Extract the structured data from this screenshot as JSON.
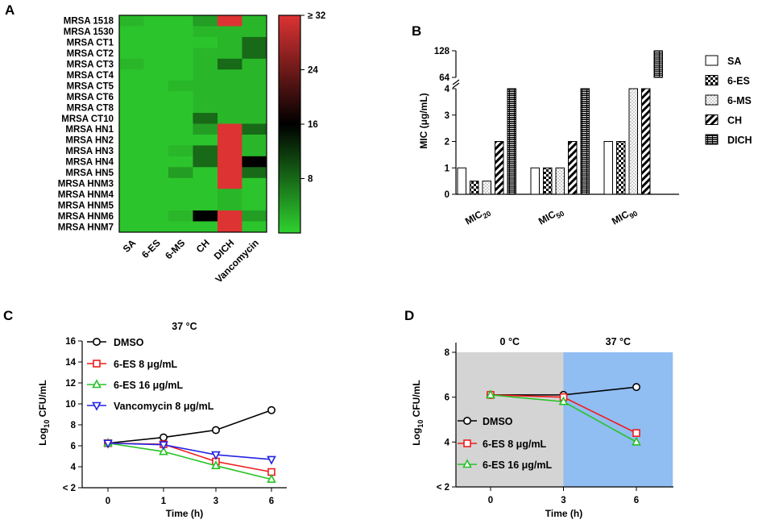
{
  "chart_data": [
    {
      "panel": "A",
      "type": "heatmap",
      "rows": [
        "MRSA 1518",
        "MRSA 1530",
        "MRSA CT1",
        "MRSA CT2",
        "MRSA CT3",
        "MRSA CT4",
        "MRSA CT5",
        "MRSA CT6",
        "MRSA CT8",
        "MRSA CT10",
        "MRSA HN1",
        "MRSA HN2",
        "MRSA HN3",
        "MRSA HN4",
        "MRSA HN5",
        "MRSA HNM3",
        "MRSA HNM4",
        "MRSA HNM5",
        "MRSA HNM6",
        "MRSA HNM7"
      ],
      "columns": [
        "SA",
        "6-ES",
        "6-MS",
        "CH",
        "DICH",
        "Vancomycin"
      ],
      "values": [
        [
          2,
          1,
          1,
          4,
          32,
          2
        ],
        [
          1,
          1,
          1,
          2,
          2,
          2
        ],
        [
          1,
          1,
          1,
          1,
          2,
          8
        ],
        [
          1,
          1,
          1,
          2,
          2,
          8
        ],
        [
          2,
          1,
          1,
          2,
          8,
          2
        ],
        [
          1,
          1,
          1,
          2,
          2,
          2
        ],
        [
          1,
          1,
          2,
          2,
          2,
          2
        ],
        [
          1,
          1,
          1,
          2,
          2,
          2
        ],
        [
          1,
          1,
          1,
          2,
          2,
          2
        ],
        [
          1,
          1,
          1,
          8,
          2,
          2
        ],
        [
          1,
          1,
          1,
          4,
          32,
          8
        ],
        [
          1,
          1,
          1,
          1,
          32,
          2
        ],
        [
          1,
          1,
          2,
          8,
          32,
          2
        ],
        [
          1,
          1,
          1,
          8,
          32,
          16
        ],
        [
          1,
          1,
          4,
          1,
          32,
          8
        ],
        [
          1,
          1,
          1,
          1,
          32,
          1
        ],
        [
          1,
          1,
          1,
          1,
          2,
          1
        ],
        [
          1,
          1,
          1,
          1,
          2,
          1
        ],
        [
          1,
          1,
          2,
          16,
          32,
          4
        ],
        [
          1,
          1,
          1,
          1,
          32,
          1
        ]
      ],
      "colorbar": {
        "ticks": [
          "≥ 32",
          "24",
          "16",
          "8"
        ],
        "tick_values": [
          32,
          24,
          16,
          8
        ],
        "range": [
          0,
          32
        ],
        "colors": {
          "low": "#2fd12f",
          "mid": "#000000",
          "high": "#dd3333"
        }
      }
    },
    {
      "panel": "B",
      "type": "bar",
      "ylabel": "MIC  (μg/mL)",
      "categories": [
        "MIC20",
        "MIC50",
        "MIC90"
      ],
      "category_labels": [
        {
          "base": "MIC",
          "sub": "20"
        },
        {
          "base": "MIC",
          "sub": "50"
        },
        {
          "base": "MIC",
          "sub": "90"
        }
      ],
      "series": [
        {
          "name": "SA",
          "values": [
            1,
            1,
            2
          ],
          "pattern": "white"
        },
        {
          "name": "6-ES",
          "values": [
            0.5,
            1,
            2
          ],
          "pattern": "checker"
        },
        {
          "name": "6-MS",
          "values": [
            0.5,
            1,
            4
          ],
          "pattern": "dots"
        },
        {
          "name": "CH",
          "values": [
            2,
            2,
            4
          ],
          "pattern": "diagonal"
        },
        {
          "name": "DICH",
          "values": [
            4,
            4,
            128
          ],
          "pattern": "brick"
        }
      ],
      "y_ticks_lower": [
        "0",
        "1",
        "2",
        "3",
        "4"
      ],
      "y_ticks_upper": [
        "64",
        "128"
      ],
      "ylim_lower": [
        0,
        4
      ],
      "ylim_upper": [
        64,
        128
      ]
    },
    {
      "panel": "C",
      "type": "line",
      "title": "37 °C",
      "xlabel": "Time (h)",
      "ylabel": {
        "base": "Log",
        "sub": "10",
        "rest": " CFU/mL"
      },
      "x_ticks": [
        "0",
        "1",
        "3",
        "6"
      ],
      "y_ticks": [
        "< 2",
        "4",
        "6",
        "8",
        "10",
        "12",
        "14",
        "16"
      ],
      "ylim": [
        2,
        16
      ],
      "series": [
        {
          "name": "DMSO",
          "x": [
            0,
            1,
            3,
            6
          ],
          "y": [
            6.25,
            6.8,
            7.5,
            9.4
          ],
          "color": "#000000",
          "marker": "circle"
        },
        {
          "name": "6-ES 8 μg/mL",
          "x": [
            0,
            1,
            3,
            6
          ],
          "y": [
            6.25,
            6.15,
            4.5,
            3.5
          ],
          "color": "#ee1c1c",
          "marker": "square"
        },
        {
          "name": "6-ES 16 μg/mL",
          "x": [
            0,
            1,
            3,
            6
          ],
          "y": [
            6.25,
            5.45,
            4.1,
            2.8
          ],
          "color": "#27c227",
          "marker": "triangle-up"
        },
        {
          "name": "Vancomycin 8 μg/mL",
          "x": [
            0,
            1,
            3,
            6
          ],
          "y": [
            6.25,
            6.1,
            5.15,
            4.7
          ],
          "color": "#2424e6",
          "marker": "triangle-down"
        }
      ]
    },
    {
      "panel": "D",
      "type": "line",
      "xlabel": "Time (h)",
      "ylabel": {
        "base": "Log",
        "sub": "10",
        "rest": " CFU/mL"
      },
      "x_ticks": [
        "0",
        "3",
        "6"
      ],
      "y_ticks": [
        "< 2",
        "4",
        "6",
        "8"
      ],
      "ylim": [
        2,
        8
      ],
      "regions": [
        {
          "label": "0 °C",
          "x_from": -1.6,
          "x_to": 3,
          "color": "#d4d4d4"
        },
        {
          "label": "37 °C",
          "x_from": 3,
          "x_to": 7.5,
          "color": "#90bdf2"
        }
      ],
      "series": [
        {
          "name": "DMSO",
          "x": [
            0,
            3,
            6
          ],
          "y": [
            6.1,
            6.1,
            6.45
          ],
          "color": "#000000",
          "marker": "circle"
        },
        {
          "name": "6-ES 8 μg/mL",
          "x": [
            0,
            3,
            6
          ],
          "y": [
            6.1,
            6.0,
            4.4
          ],
          "color": "#ee1c1c",
          "marker": "square"
        },
        {
          "name": "6-ES 16 μg/mL",
          "x": [
            0,
            3,
            6
          ],
          "y": [
            6.1,
            5.8,
            4.0
          ],
          "color": "#27c227",
          "marker": "triangle-up"
        }
      ]
    }
  ],
  "panel_labels": [
    "A",
    "B",
    "C",
    "D"
  ]
}
